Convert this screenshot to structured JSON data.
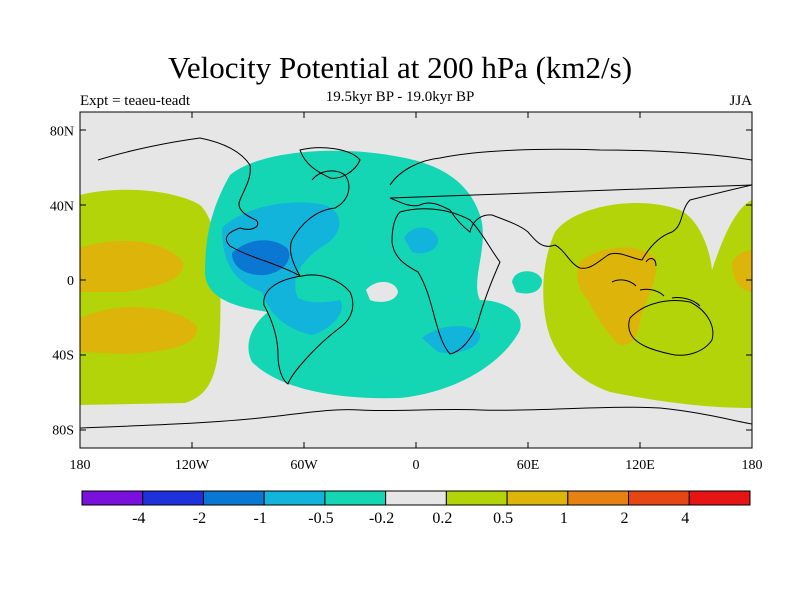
{
  "title": "Velocity Potential at 200 hPa (km2/s)",
  "subtitle": "19.5kyr BP - 19.0kyr BP",
  "left_label": "Expt = teaeu-teadt",
  "right_label": "JJA",
  "lon_ticks": [
    {
      "value": -180,
      "label": "180"
    },
    {
      "value": -120,
      "label": "120W"
    },
    {
      "value": -60,
      "label": "60W"
    },
    {
      "value": 0,
      "label": "0"
    },
    {
      "value": 60,
      "label": "60E"
    },
    {
      "value": 120,
      "label": "120E"
    },
    {
      "value": 180,
      "label": "180"
    }
  ],
  "lat_ticks": [
    {
      "value": 80,
      "label": "80N"
    },
    {
      "value": 40,
      "label": "40N"
    },
    {
      "value": 0,
      "label": "0"
    },
    {
      "value": -40,
      "label": "40S"
    },
    {
      "value": -80,
      "label": "80S"
    }
  ],
  "colorbar": {
    "colors": [
      "#7a10dc",
      "#1e32dc",
      "#0a78d2",
      "#12b4dc",
      "#14d6b4",
      "#e6e6e6",
      "#b4d40a",
      "#dcb40a",
      "#e68214",
      "#e64614",
      "#e61414"
    ],
    "labels": [
      "-4",
      "-2",
      "-1",
      "-0.5",
      "-0.2",
      "0.2",
      "0.5",
      "1",
      "2",
      "4"
    ]
  },
  "contour_colors": {
    "neutral": "#e6e6e6",
    "neg_small": "#14d6b4",
    "neg_mid": "#12b4dc",
    "neg_large": "#0a78d2",
    "pos_small": "#b4d40a",
    "pos_mid": "#dcb40a",
    "pos_large": "#e68214"
  }
}
